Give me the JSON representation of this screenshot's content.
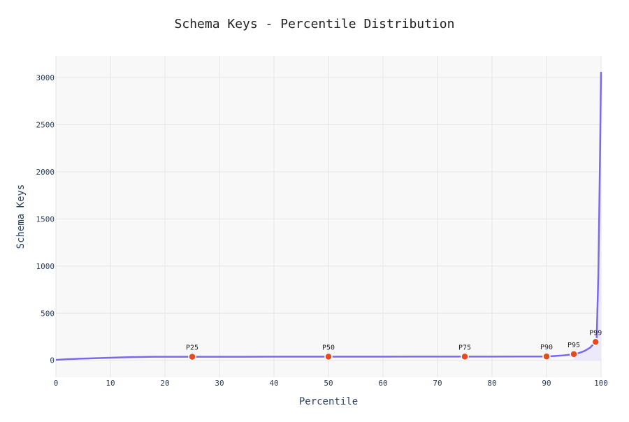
{
  "chart_data": {
    "type": "line",
    "title": "Schema Keys - Percentile Distribution",
    "xlabel": "Percentile",
    "ylabel": "Schema Keys",
    "xlim": [
      0,
      100
    ],
    "ylim": [
      -180,
      3230
    ],
    "x_ticks": [
      0,
      10,
      20,
      30,
      40,
      50,
      60,
      70,
      80,
      90,
      100
    ],
    "y_ticks": [
      0,
      500,
      1000,
      1500,
      2000,
      2500,
      3000
    ],
    "grid": true,
    "legend": "none",
    "series": [
      {
        "x": [
          0,
          1,
          2,
          3,
          4,
          5,
          6,
          7,
          8,
          9,
          10,
          12,
          14,
          16,
          18,
          20,
          22,
          25,
          30,
          35,
          40,
          45,
          50,
          55,
          60,
          65,
          70,
          75,
          80,
          85,
          88,
          90,
          91,
          92,
          93,
          94,
          95,
          96,
          97,
          98,
          99,
          99.2,
          99.5,
          99.8,
          100
        ],
        "y": [
          4,
          8,
          12,
          14,
          16,
          18,
          20,
          22,
          24,
          26,
          28,
          31,
          34,
          36,
          38,
          38,
          38,
          38,
          38,
          38,
          39,
          39,
          39,
          39,
          39,
          40,
          40,
          40,
          40,
          41,
          41,
          41,
          44,
          48,
          52,
          58,
          66,
          78,
          100,
          135,
          195,
          235,
          900,
          2100,
          3060
        ]
      }
    ],
    "markers": [
      {
        "label": "P25",
        "x": 25,
        "y": 38
      },
      {
        "label": "P50",
        "x": 50,
        "y": 39
      },
      {
        "label": "P75",
        "x": 75,
        "y": 40
      },
      {
        "label": "P90",
        "x": 90,
        "y": 41
      },
      {
        "label": "P95",
        "x": 95,
        "y": 66
      },
      {
        "label": "P99",
        "x": 99,
        "y": 195
      }
    ],
    "colors": {
      "line": "#7b68ee",
      "fill": "#ece9fb",
      "marker_fill": "#e8491d",
      "marker_stroke": "#ffffff",
      "plot_bg": "#f8f8f8",
      "grid": "#e6e6e6",
      "text": "#2a3f5f"
    }
  }
}
